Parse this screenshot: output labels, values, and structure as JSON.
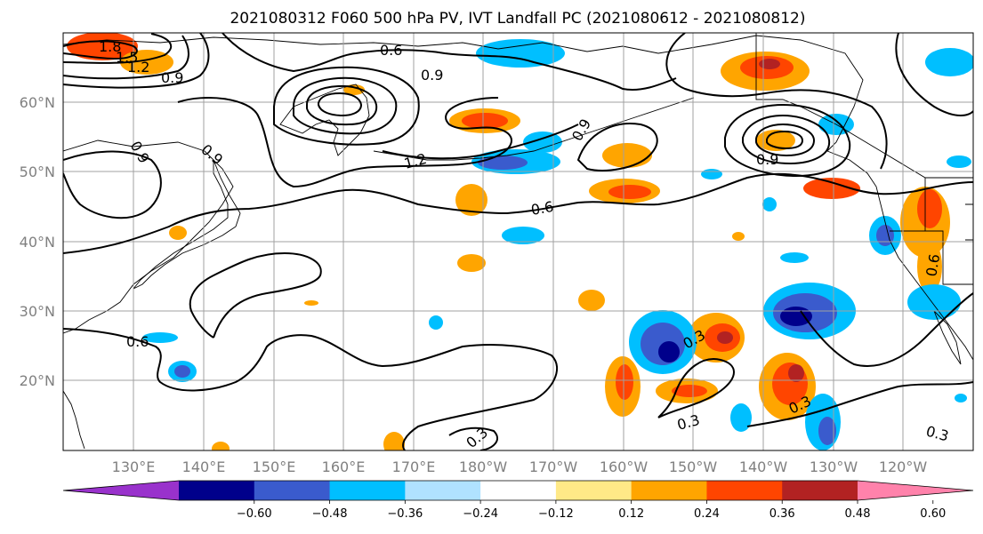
{
  "title": "2021080312 F060 500 hPa PV, IVT Landfall PC (2021080612 - 2021080812)",
  "map": {
    "lat_ticks": [
      {
        "value": 60,
        "label": "60°N"
      },
      {
        "value": 50,
        "label": "50°N"
      },
      {
        "value": 40,
        "label": "40°N"
      },
      {
        "value": 30,
        "label": "30°N"
      },
      {
        "value": 20,
        "label": "20°N"
      }
    ],
    "lon_ticks": [
      {
        "value": 130,
        "label": "130°E"
      },
      {
        "value": 140,
        "label": "140°E"
      },
      {
        "value": 150,
        "label": "150°E"
      },
      {
        "value": 160,
        "label": "160°E"
      },
      {
        "value": 170,
        "label": "170°E"
      },
      {
        "value": 180,
        "label": "180°W"
      },
      {
        "value": 190,
        "label": "170°W"
      },
      {
        "value": 200,
        "label": "160°W"
      },
      {
        "value": 210,
        "label": "150°W"
      },
      {
        "value": 220,
        "label": "140°W"
      },
      {
        "value": 230,
        "label": "130°W"
      },
      {
        "value": 240,
        "label": "120°W"
      }
    ],
    "extent": {
      "lon_min": 120,
      "lon_max": 250,
      "lat_min": 10,
      "lat_max": 70
    },
    "gridlines": true,
    "contour_labels": [
      "1.8",
      "1.5",
      "1.2",
      "0.9",
      "0.6",
      "0.9",
      "0.9",
      "1.2",
      "0.9",
      "0.6",
      "0.9",
      "0.6",
      "0.6",
      "0.3",
      "0.3",
      "0.3",
      "0.3",
      "0.9",
      "0.3"
    ]
  },
  "colorbar": {
    "ticks": [
      "−0.60",
      "−0.48",
      "−0.36",
      "−0.24",
      "−0.12",
      "0.12",
      "0.24",
      "0.36",
      "0.48",
      "0.60"
    ],
    "colors": [
      "#9932cc",
      "#00008b",
      "#3a5bcd",
      "#00bfff",
      "#b0e2ff",
      "#ffffff",
      "#ffe987",
      "#ffa500",
      "#ff4500",
      "#b22222",
      "#ff82ab"
    ],
    "extend": "both"
  }
}
